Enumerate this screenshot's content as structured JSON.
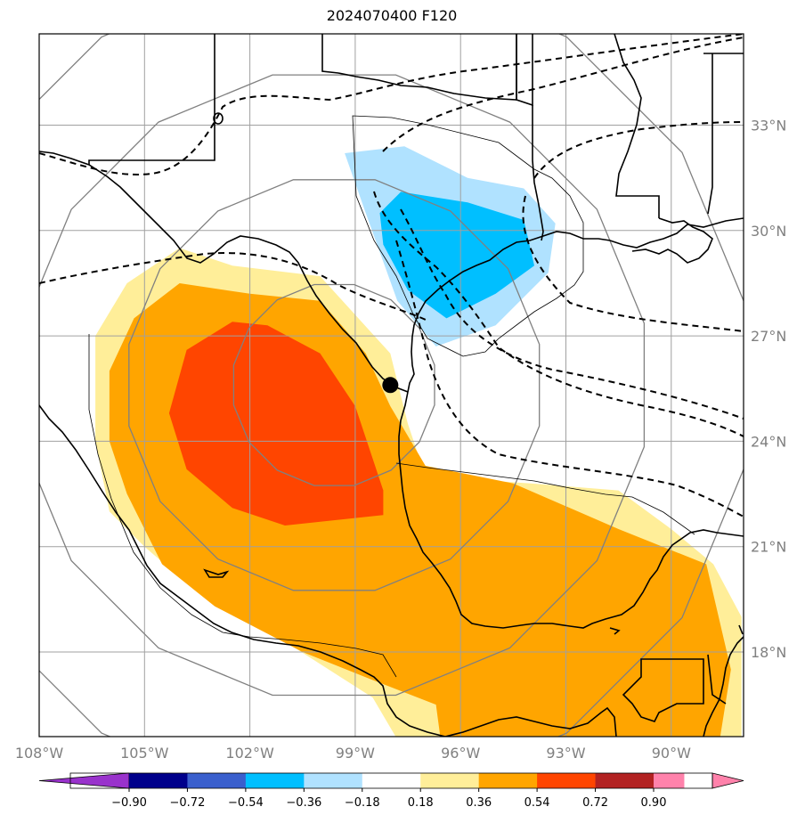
{
  "title": "2024070400 F120",
  "map": {
    "projection": "lat-lon",
    "lon_range": [
      -108,
      -88
    ],
    "lat_range": [
      15,
      35
    ],
    "storm_center_marker": {
      "lon": -98,
      "lat": 25.6
    },
    "range_rings_center": {
      "lon": -99.6,
      "lat": 25.6
    },
    "colors": {
      "coast": "#000000",
      "grid": "#a0a0a0",
      "rings": "#808080",
      "isobar": "#000000"
    }
  },
  "axes": {
    "lon_ticks": [
      "108°W",
      "105°W",
      "102°W",
      "99°W",
      "96°W",
      "93°W",
      "90°W"
    ],
    "lat_ticks": [
      "33°N",
      "30°N",
      "27°N",
      "24°N",
      "21°N",
      "18°N"
    ]
  },
  "colorbar": {
    "labels": [
      "−0.90",
      "−0.72",
      "−0.54",
      "−0.36",
      "−0.18",
      "0.18",
      "0.36",
      "0.54",
      "0.72",
      "0.90"
    ],
    "colors": [
      "#9932cc",
      "#00008b",
      "#3a5fcd",
      "#00bfff",
      "#b0e2ff",
      "#ffffff",
      "#ffee99",
      "#ffa500",
      "#ff4500",
      "#b22222",
      "#ff82ab"
    ]
  },
  "chart_data": {
    "type": "heatmap",
    "title": "2024070400 F120",
    "x_ticks": [
      "108°W",
      "105°W",
      "102°W",
      "99°W",
      "96°W",
      "93°W",
      "90°W"
    ],
    "y_ticks": [
      "33°N",
      "30°N",
      "27°N",
      "24°N",
      "21°N",
      "18°N"
    ],
    "levels": [
      -0.9,
      -0.72,
      -0.54,
      -0.36,
      -0.18,
      0.18,
      0.36,
      0.54,
      0.72,
      0.9
    ],
    "xlim": [
      -108,
      -88
    ],
    "ylim": [
      15,
      35
    ],
    "regions": [
      {
        "level": "0.18 to 0.36",
        "color": "#ffee99",
        "outline_lonlat": [
          [
            -104,
            29.5
          ],
          [
            -102.5,
            29
          ],
          [
            -100,
            28.7
          ],
          [
            -98,
            26.5
          ],
          [
            -97.5,
            24.5
          ],
          [
            -97,
            23
          ],
          [
            -94,
            22.8
          ],
          [
            -91.5,
            22.6
          ],
          [
            -90,
            21.5
          ],
          [
            -88.8,
            20.5
          ],
          [
            -88,
            19
          ],
          [
            -88,
            15
          ],
          [
            -97.5,
            15
          ],
          [
            -98.5,
            16.7
          ],
          [
            -101,
            18.3
          ],
          [
            -103.5,
            19.7
          ],
          [
            -105,
            21
          ],
          [
            -106,
            22
          ],
          [
            -106.4,
            24
          ],
          [
            -106.4,
            27
          ],
          [
            -105.5,
            28.5
          ]
        ]
      },
      {
        "level": "0.36 to 0.54",
        "color": "#ffa500",
        "outline_lonlat": [
          [
            -104,
            28.5
          ],
          [
            -102,
            28.2
          ],
          [
            -100,
            28
          ],
          [
            -98.7,
            26.5
          ],
          [
            -98,
            25
          ],
          [
            -97,
            23.3
          ],
          [
            -94.5,
            22.8
          ],
          [
            -91.5,
            21.5
          ],
          [
            -89,
            20.5
          ],
          [
            -88.3,
            17.5
          ],
          [
            -88.7,
            15
          ],
          [
            -96.5,
            15
          ],
          [
            -96.7,
            16.5
          ],
          [
            -98.5,
            17.2
          ],
          [
            -100.5,
            18
          ],
          [
            -103,
            19.3
          ],
          [
            -104.5,
            20.5
          ],
          [
            -105.5,
            22.5
          ],
          [
            -106,
            24
          ],
          [
            -106,
            26
          ],
          [
            -105.3,
            27.5
          ]
        ]
      },
      {
        "level": "0.54 to 0.72",
        "color": "#ff4500",
        "outline_lonlat": [
          [
            -102.5,
            27.4
          ],
          [
            -101.5,
            27.3
          ],
          [
            -100,
            26.5
          ],
          [
            -99,
            25
          ],
          [
            -98.2,
            22.6
          ],
          [
            -98.2,
            21.9
          ],
          [
            -101,
            21.6
          ],
          [
            -102.5,
            22.1
          ],
          [
            -103.8,
            23.2
          ],
          [
            -104.3,
            24.8
          ],
          [
            -103.8,
            26.6
          ]
        ]
      },
      {
        "level": "-0.36 to -0.18",
        "color": "#b0e2ff",
        "outline_lonlat": [
          [
            -97.6,
            32.4
          ],
          [
            -95.8,
            31.5
          ],
          [
            -94.2,
            31.2
          ],
          [
            -93.3,
            30.2
          ],
          [
            -93.5,
            28.8
          ],
          [
            -95,
            27.3
          ],
          [
            -96.7,
            26.7
          ],
          [
            -97.8,
            28
          ],
          [
            -98.7,
            30.5
          ],
          [
            -99.3,
            32.2
          ]
        ]
      },
      {
        "level": "-0.54 to -0.36",
        "color": "#00bfff",
        "outline_lonlat": [
          [
            -97.7,
            31.1
          ],
          [
            -95.8,
            30.8
          ],
          [
            -94.2,
            30.3
          ],
          [
            -93.9,
            29
          ],
          [
            -95,
            28.2
          ],
          [
            -96.4,
            27.5
          ],
          [
            -97.5,
            28.3
          ],
          [
            -98.2,
            29.6
          ],
          [
            -98.3,
            30.5
          ]
        ]
      }
    ]
  }
}
